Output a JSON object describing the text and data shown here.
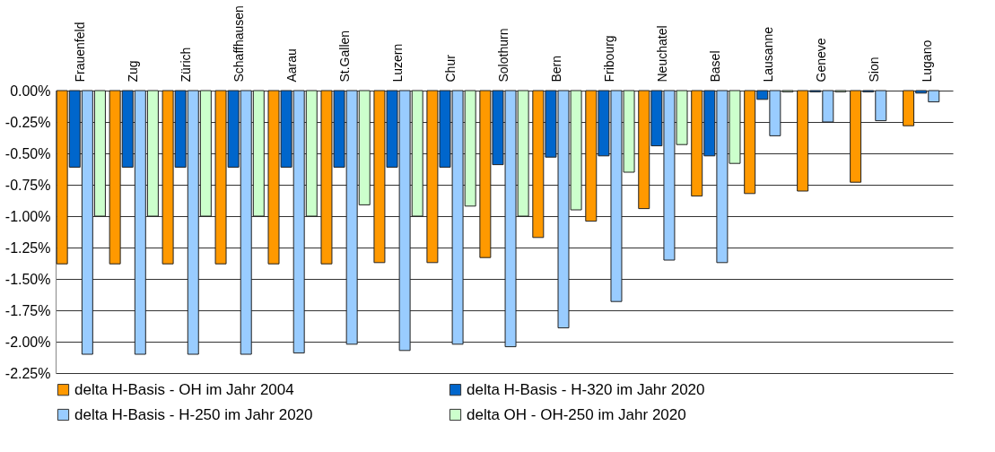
{
  "chart_data": {
    "type": "bar",
    "categories": [
      "Frauenfeld",
      "Zug",
      "Zürich",
      "Schaffhausen",
      "Aarau",
      "St.Gallen",
      "Luzern",
      "Chur",
      "Solothurn",
      "Bern",
      "Fribourg",
      "Neuchatel",
      "Basel",
      "Lausanne",
      "Geneve",
      "Sion",
      "Lugano"
    ],
    "series": [
      {
        "name": "delta H-Basis - OH im Jahr 2004",
        "color": "#ff9900",
        "values": [
          -1.38,
          -1.38,
          -1.38,
          -1.38,
          -1.38,
          -1.38,
          -1.37,
          -1.37,
          -1.33,
          -1.17,
          -1.04,
          -0.94,
          -0.84,
          -0.82,
          -0.8,
          -0.73,
          -0.28
        ]
      },
      {
        "name": "delta H-Basis - H-320 im Jahr 2020",
        "color": "#0066cc",
        "values": [
          -0.61,
          -0.61,
          -0.61,
          -0.61,
          -0.61,
          -0.61,
          -0.61,
          -0.61,
          -0.59,
          -0.53,
          -0.52,
          -0.44,
          -0.52,
          -0.07,
          -0.01,
          -0.01,
          -0.02
        ]
      },
      {
        "name": "delta H-Basis - H-250 im Jahr 2020",
        "color": "#99ccff",
        "values": [
          -2.1,
          -2.1,
          -2.1,
          -2.1,
          -2.09,
          -2.02,
          -2.07,
          -2.02,
          -2.04,
          -1.89,
          -1.68,
          -1.35,
          -1.37,
          -0.36,
          -0.25,
          -0.24,
          -0.09
        ]
      },
      {
        "name": "delta OH - OH-250 im Jahr 2020",
        "color": "#ccffcc",
        "values": [
          -1.0,
          -1.0,
          -1.0,
          -1.0,
          -1.0,
          -0.91,
          -1.0,
          -0.92,
          -1.0,
          -0.95,
          -0.65,
          -0.43,
          -0.58,
          -0.01,
          -0.01,
          null,
          null
        ]
      }
    ],
    "ylim": [
      -2.25,
      0
    ],
    "yticks": [
      {
        "value": 0,
        "label": "0.00%"
      },
      {
        "value": -0.25,
        "label": "-0.25%"
      },
      {
        "value": -0.5,
        "label": "-0.50%"
      },
      {
        "value": -0.75,
        "label": "-0.75%"
      },
      {
        "value": -1.0,
        "label": "-1.00%"
      },
      {
        "value": -1.25,
        "label": "-1.25%"
      },
      {
        "value": -1.5,
        "label": "-1.50%"
      },
      {
        "value": -1.75,
        "label": "-1.75%"
      },
      {
        "value": -2.0,
        "label": "-2.00%"
      },
      {
        "value": -2.25,
        "label": "-2.25%"
      }
    ],
    "grid": "y",
    "legend": "bottom"
  }
}
